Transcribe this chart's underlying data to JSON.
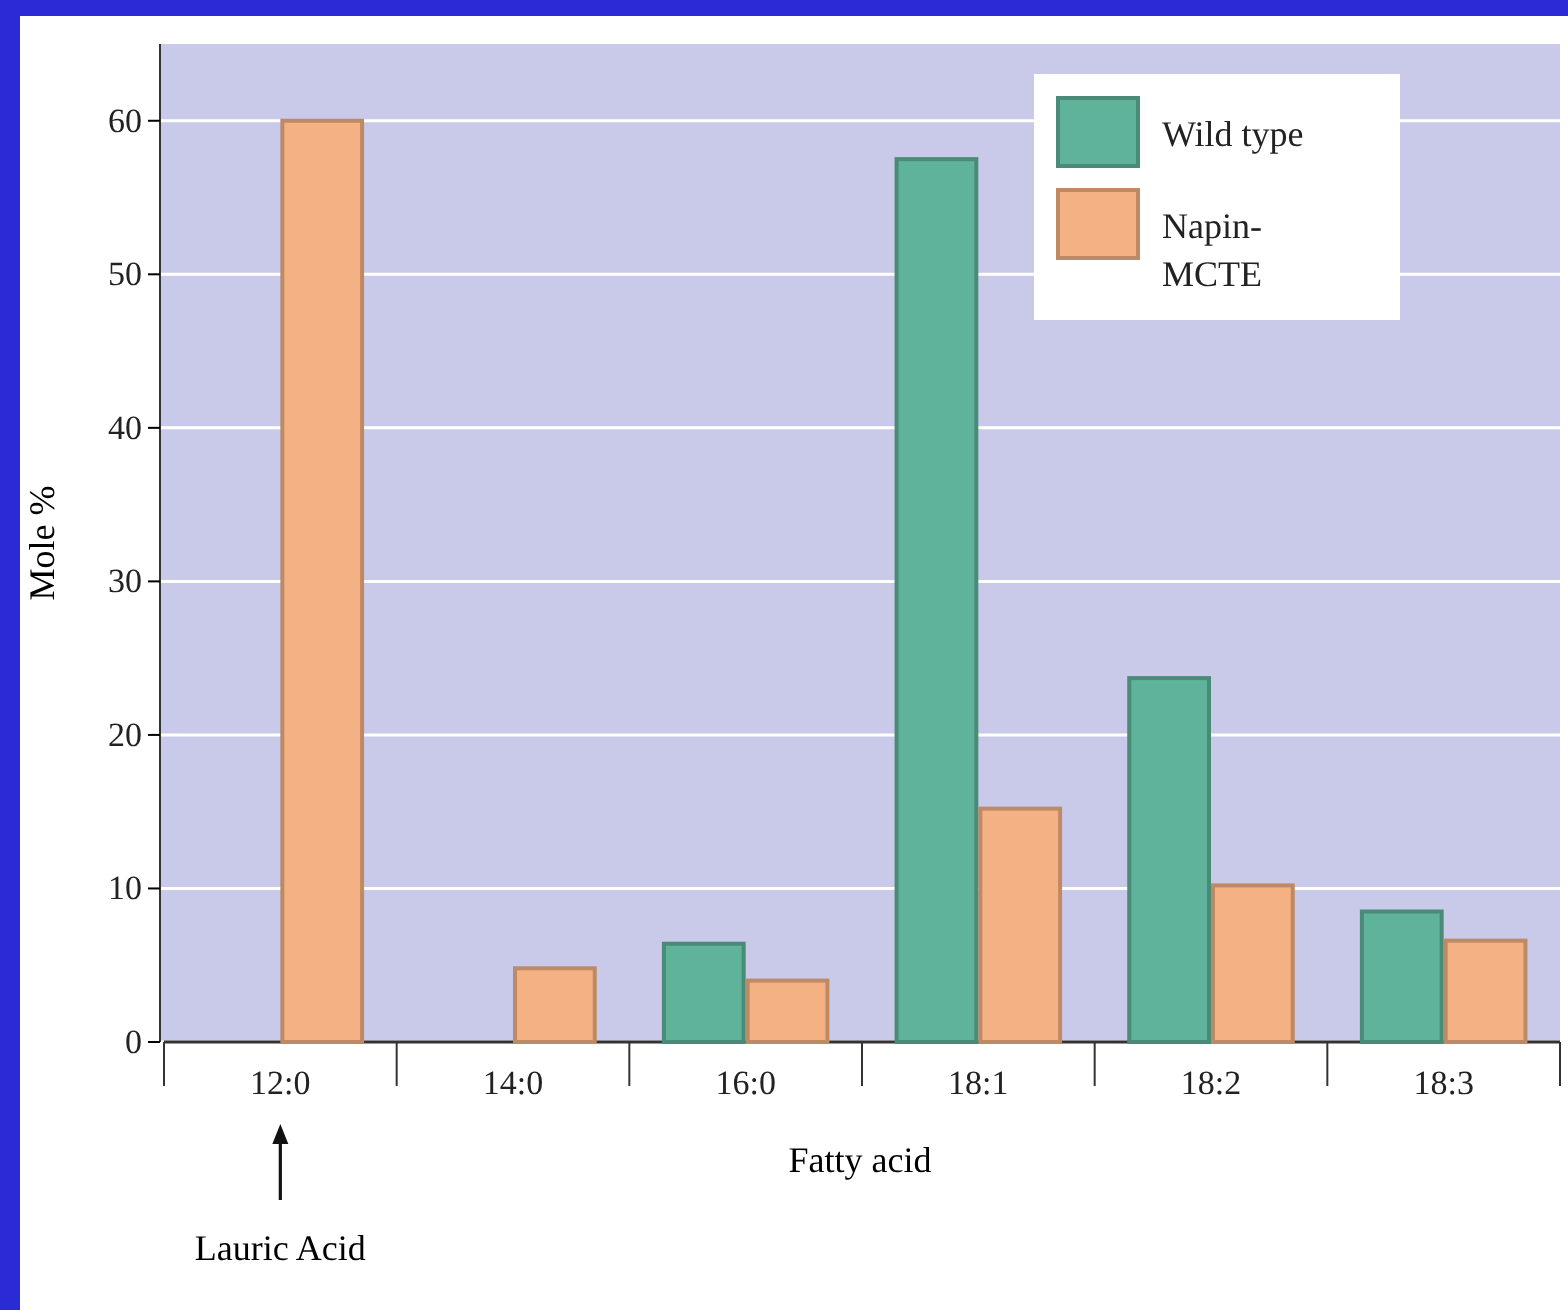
{
  "chart_data": {
    "type": "bar",
    "xlabel": "Fatty acid",
    "ylabel": "Mole %",
    "categories": [
      "12:0",
      "14:0",
      "16:0",
      "18:1",
      "18:2",
      "18:3"
    ],
    "series": [
      {
        "name": "Wild type",
        "color": "#5fb39a",
        "values": [
          null,
          null,
          6.4,
          57.5,
          23.7,
          8.5
        ]
      },
      {
        "name": "Napin-\nMCTE",
        "color": "#f4b183",
        "values": [
          60,
          4.8,
          4.0,
          15.2,
          10.2,
          6.6
        ]
      }
    ],
    "ylim": [
      0,
      65
    ],
    "yticks": [
      0,
      10,
      20,
      30,
      40,
      50,
      60
    ],
    "grid": "y",
    "legend": "top right",
    "annotations": [
      "Lauric Acid"
    ]
  }
}
